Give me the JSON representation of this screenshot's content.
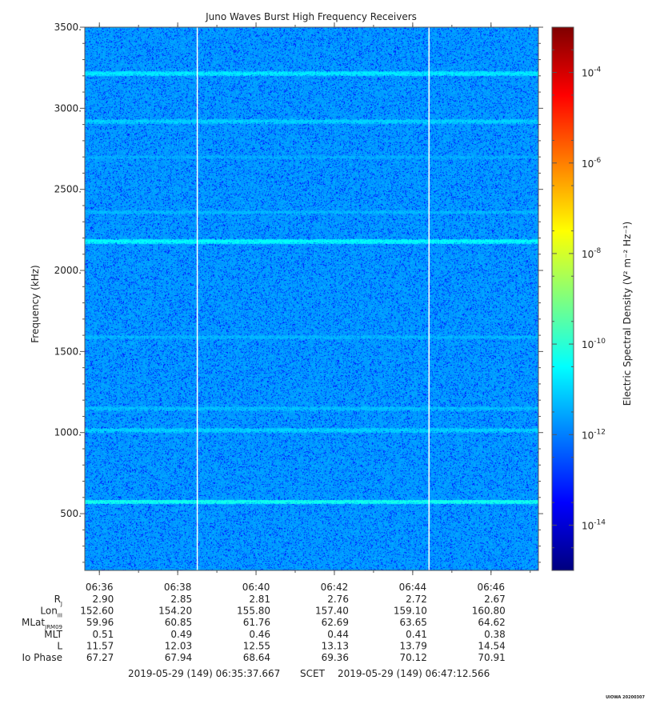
{
  "chart_data": {
    "type": "heatmap",
    "title": "Juno Waves Burst High Frequency Receivers",
    "ylabel": "Frequency (kHz)",
    "y_ticks": [
      500,
      1000,
      1500,
      2000,
      2500,
      3000,
      3500
    ],
    "y_tick_labels": [
      "500.",
      "1000.",
      "1500.",
      "2000.",
      "2500.",
      "3000.",
      "3500."
    ],
    "ylim": [
      150,
      3500
    ],
    "xlim": [
      "06:35:37.667",
      "06:47:12.566"
    ],
    "x_ticks": [
      "06:36",
      "06:38",
      "06:40",
      "06:42",
      "06:44",
      "06:46"
    ],
    "background_level_exp": -11.7,
    "horizontal_bands": [
      {
        "freq_khz": 575,
        "exp": -10.3
      },
      {
        "freq_khz": 1015,
        "exp": -11.0
      },
      {
        "freq_khz": 1150,
        "exp": -11.2
      },
      {
        "freq_khz": 1590,
        "exp": -11.3
      },
      {
        "freq_khz": 2180,
        "exp": -10.5
      },
      {
        "freq_khz": 2360,
        "exp": -11.3
      },
      {
        "freq_khz": 2700,
        "exp": -11.4
      },
      {
        "freq_khz": 2920,
        "exp": -11.0
      },
      {
        "freq_khz": 3215,
        "exp": -10.7
      }
    ],
    "data_gaps": [
      "06:38:30",
      "06:44:25"
    ],
    "colorbar": {
      "label": "Electric Spectral Density (V² m⁻² Hz⁻¹)",
      "tick_exps": [
        -4,
        -6,
        -8,
        -10,
        -12,
        -14
      ],
      "range_exp": [
        -15,
        -3
      ],
      "colormap": [
        "#00007f",
        "#0000ff",
        "#007fff",
        "#00ffff",
        "#7fff7f",
        "#ffff00",
        "#ff7f00",
        "#ff0000",
        "#7f0000"
      ]
    }
  },
  "ephemeris": {
    "rows": [
      {
        "label": "R",
        "sub": "J",
        "values": [
          "2.90",
          "2.85",
          "2.81",
          "2.76",
          "2.72",
          "2.67"
        ]
      },
      {
        "label": "Lon",
        "sub": "III",
        "values": [
          "152.60",
          "154.20",
          "155.80",
          "157.40",
          "159.10",
          "160.80"
        ]
      },
      {
        "label": "MLat",
        "sub": "JRM09",
        "values": [
          "59.96",
          "60.85",
          "61.76",
          "62.69",
          "63.65",
          "64.62"
        ]
      },
      {
        "label": "MLT",
        "sub": "",
        "values": [
          "0.51",
          "0.49",
          "0.46",
          "0.44",
          "0.41",
          "0.38"
        ]
      },
      {
        "label": "L",
        "sub": "",
        "values": [
          "11.57",
          "12.03",
          "12.55",
          "13.13",
          "13.79",
          "14.54"
        ]
      },
      {
        "label": "Io Phase",
        "sub": "",
        "values": [
          "67.27",
          "67.94",
          "68.64",
          "69.36",
          "70.12",
          "70.91"
        ]
      }
    ]
  },
  "footer": {
    "start": "2019-05-29 (149) 06:35:37.667",
    "scet": "SCET",
    "end": "2019-05-29 (149) 06:47:12.566",
    "stamp": "UIOWA 20200307"
  }
}
